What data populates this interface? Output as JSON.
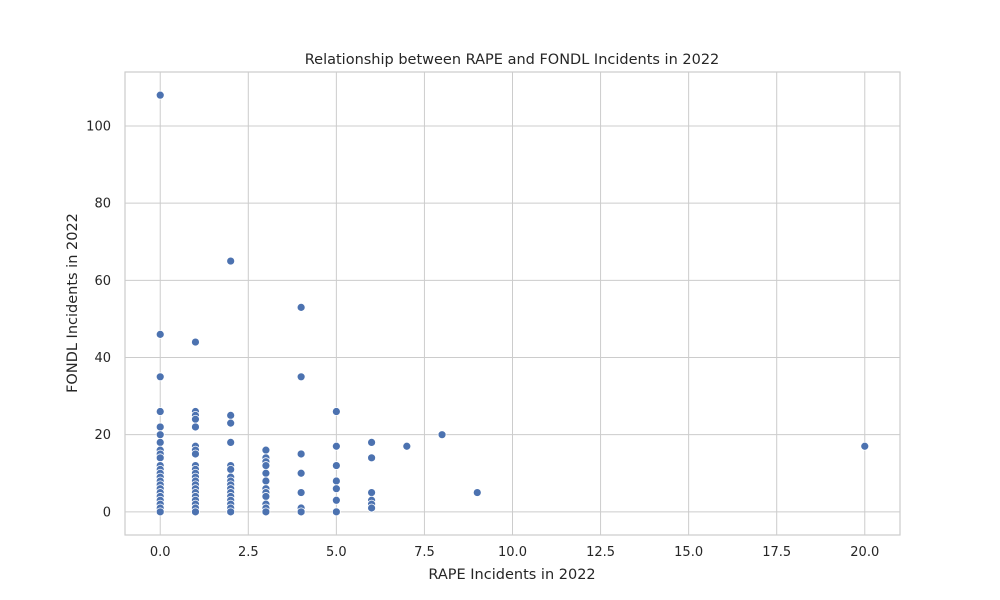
{
  "chart_data": {
    "type": "scatter",
    "title": "Relationship between RAPE and FONDL Incidents in 2022",
    "xlabel": "RAPE Incidents in 2022",
    "ylabel": "FONDL Incidents in 2022",
    "xlim": [
      -1,
      21
    ],
    "ylim": [
      -6,
      114
    ],
    "xticks": [
      0,
      2.5,
      5,
      7.5,
      10,
      12.5,
      15,
      17.5,
      20
    ],
    "xtick_labels": [
      "0.0",
      "2.5",
      "5.0",
      "7.5",
      "10.0",
      "12.5",
      "15.0",
      "17.5",
      "20.0"
    ],
    "yticks": [
      0,
      20,
      40,
      60,
      80,
      100
    ],
    "ytick_labels": [
      "0",
      "20",
      "40",
      "60",
      "80",
      "100"
    ],
    "grid": true,
    "legend": "none",
    "marker_color": "#4c72b0",
    "points": [
      [
        0,
        108
      ],
      [
        0,
        46
      ],
      [
        0,
        35
      ],
      [
        0,
        26
      ],
      [
        0,
        22
      ],
      [
        0,
        20
      ],
      [
        0,
        18
      ],
      [
        0,
        16
      ],
      [
        0,
        15
      ],
      [
        0,
        14
      ],
      [
        0,
        12
      ],
      [
        0,
        11
      ],
      [
        0,
        10
      ],
      [
        0,
        9
      ],
      [
        0,
        8
      ],
      [
        0,
        7
      ],
      [
        0,
        6
      ],
      [
        0,
        5
      ],
      [
        0,
        4
      ],
      [
        0,
        3
      ],
      [
        0,
        2
      ],
      [
        0,
        1
      ],
      [
        0,
        0
      ],
      [
        1,
        44
      ],
      [
        1,
        26
      ],
      [
        1,
        25
      ],
      [
        1,
        24
      ],
      [
        1,
        22
      ],
      [
        1,
        17
      ],
      [
        1,
        16
      ],
      [
        1,
        15
      ],
      [
        1,
        12
      ],
      [
        1,
        11
      ],
      [
        1,
        10
      ],
      [
        1,
        9
      ],
      [
        1,
        8
      ],
      [
        1,
        7
      ],
      [
        1,
        6
      ],
      [
        1,
        5
      ],
      [
        1,
        4
      ],
      [
        1,
        3
      ],
      [
        1,
        2
      ],
      [
        1,
        1
      ],
      [
        1,
        0
      ],
      [
        2,
        65
      ],
      [
        2,
        25
      ],
      [
        2,
        23
      ],
      [
        2,
        18
      ],
      [
        2,
        12
      ],
      [
        2,
        11
      ],
      [
        2,
        9
      ],
      [
        2,
        8
      ],
      [
        2,
        7
      ],
      [
        2,
        6
      ],
      [
        2,
        5
      ],
      [
        2,
        4
      ],
      [
        2,
        3
      ],
      [
        2,
        2
      ],
      [
        2,
        1
      ],
      [
        2,
        0
      ],
      [
        3,
        16
      ],
      [
        3,
        14
      ],
      [
        3,
        13
      ],
      [
        3,
        12
      ],
      [
        3,
        10
      ],
      [
        3,
        8
      ],
      [
        3,
        6
      ],
      [
        3,
        5
      ],
      [
        3,
        4
      ],
      [
        3,
        2
      ],
      [
        3,
        1
      ],
      [
        3,
        0
      ],
      [
        4,
        53
      ],
      [
        4,
        35
      ],
      [
        4,
        15
      ],
      [
        4,
        10
      ],
      [
        4,
        5
      ],
      [
        4,
        1
      ],
      [
        4,
        0
      ],
      [
        5,
        26
      ],
      [
        5,
        17
      ],
      [
        5,
        12
      ],
      [
        5,
        8
      ],
      [
        5,
        6
      ],
      [
        5,
        3
      ],
      [
        5,
        0
      ],
      [
        6,
        18
      ],
      [
        6,
        14
      ],
      [
        6,
        5
      ],
      [
        6,
        3
      ],
      [
        6,
        2
      ],
      [
        6,
        1
      ],
      [
        7,
        17
      ],
      [
        8,
        20
      ],
      [
        9,
        5
      ],
      [
        20,
        17
      ]
    ]
  }
}
